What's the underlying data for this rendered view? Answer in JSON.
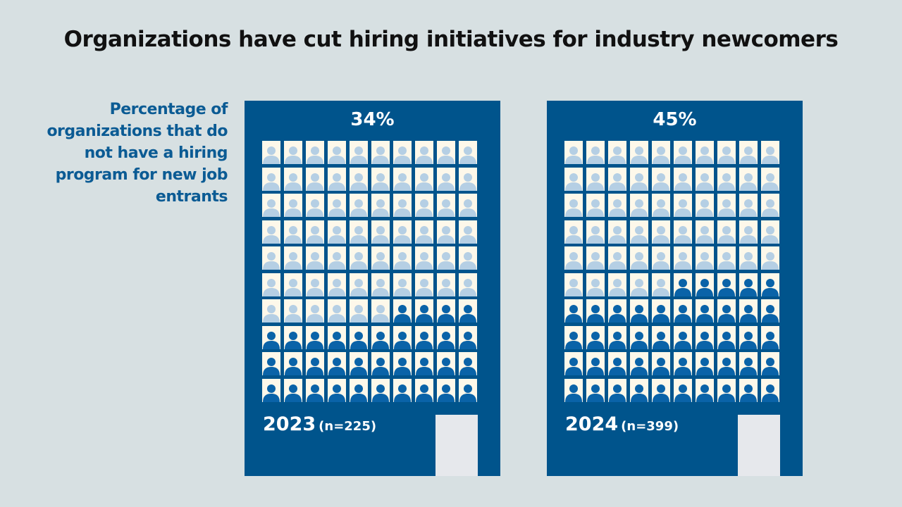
{
  "title": "Organizations have cut hiring initiatives for industry newcomers",
  "subtitle": "Percentage of organizations that do not have a hiring program for new job entrants",
  "colors": {
    "building": "#00548c",
    "highlighted": "#0a63a8",
    "other": "#b5cfe4",
    "cell": "#fdf8ea",
    "background": "#d7e0e2"
  },
  "chart_data": {
    "type": "pictogram",
    "grid": [
      10,
      10
    ],
    "icon": "person-icon",
    "panels": [
      {
        "year": "2023",
        "n_label": "(n=225)",
        "value": 34,
        "value_label": "34%"
      },
      {
        "year": "2024",
        "n_label": "(n=399)",
        "value": 45,
        "value_label": "45%"
      }
    ]
  }
}
